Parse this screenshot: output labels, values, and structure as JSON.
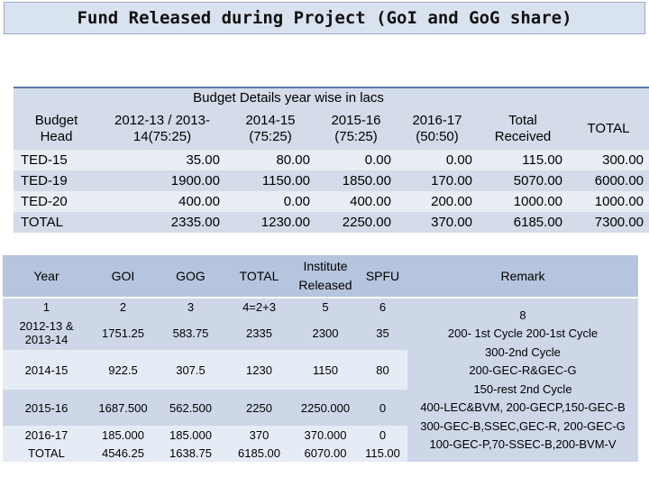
{
  "title": "Fund Released during Project (GoI and GoG share)",
  "budget_table": {
    "caption": "Budget Details year wise in lacs",
    "head_line1": "Budget",
    "head_line2": "Head",
    "col_2012_l1": "2012-13 / 2013-",
    "col_2012_l2": "14(75:25)",
    "col_2014_l1": "2014-15",
    "col_2014_l2": "(75:25)",
    "col_2015_l1": "2015-16",
    "col_2015_l2": "(75:25)",
    "col_2016_l1": "2016-17",
    "col_2016_l2": "(50:50)",
    "col_total_l1": "Total",
    "col_total_l2": "Received",
    "col_grand": "TOTAL",
    "rows": [
      {
        "head": "TED-15",
        "y1": "35.00",
        "y2": "80.00",
        "y3": "0.00",
        "y4": "0.00",
        "received": "115.00",
        "total": "300.00"
      },
      {
        "head": "TED-19",
        "y1": "1900.00",
        "y2": "1150.00",
        "y3": "1850.00",
        "y4": "170.00",
        "received": "5070.00",
        "total": "6000.00"
      },
      {
        "head": "TED-20",
        "y1": "400.00",
        "y2": "0.00",
        "y3": "400.00",
        "y4": "200.00",
        "received": "1000.00",
        "total": "1000.00"
      },
      {
        "head": "TOTAL",
        "y1": "2335.00",
        "y2": "1230.00",
        "y3": "2250.00",
        "y4": "370.00",
        "received": "6185.00",
        "total": "7300.00"
      }
    ]
  },
  "release_table": {
    "headers": {
      "year": "Year",
      "goi": "GOI",
      "gog": "GOG",
      "total": "TOTAL",
      "inst_l1": "Institute",
      "inst_l2": "Released",
      "spfu": "SPFU",
      "remark": "Remark"
    },
    "index_row": {
      "year": "1",
      "goi": "2",
      "gog": "3",
      "total": "4=2+3",
      "inst": "5",
      "spfu": "6",
      "remark": "8"
    },
    "rows": [
      {
        "year_l1": "2012-13 &",
        "year_l2": "2013-14",
        "goi": "1751.25",
        "gog": "583.75",
        "total": "2335",
        "inst": "2300",
        "spfu": "35"
      },
      {
        "year_l1": "2014-15",
        "year_l2": "",
        "goi": "922.5",
        "gog": "307.5",
        "total": "1230",
        "inst": "1150",
        "spfu": "80"
      },
      {
        "year_l1": "2015-16",
        "year_l2": "",
        "goi": "1687.500",
        "gog": "562.500",
        "total": "2250",
        "inst": "2250.000",
        "spfu": "0"
      },
      {
        "year_l1": "2016-17",
        "year_l2": "",
        "goi": "185.000",
        "gog": "185.000",
        "total": "370",
        "inst": "370.000",
        "spfu": "0"
      },
      {
        "year_l1": "TOTAL",
        "year_l2": "",
        "goi": "4546.25",
        "gog": "1638.75",
        "total": "6185.00",
        "inst": "6070.00",
        "spfu": "115.00"
      }
    ],
    "remark_lines": [
      "200- 1st Cycle 200-1st Cycle",
      "300-2nd Cycle",
      "200-GEC-R&GEC-G",
      "150-rest 2nd Cycle",
      "400-LEC&BVM, 200-GECP,150-GEC-B",
      "300-GEC-B,SSEC,GEC-R, 200-GEC-G",
      "100-GEC-P,70-SSEC-B,200-BVM-V"
    ]
  }
}
